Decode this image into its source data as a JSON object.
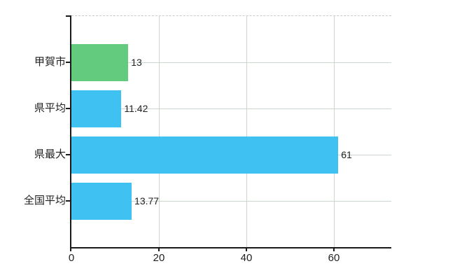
{
  "chart_data": {
    "type": "bar",
    "orientation": "horizontal",
    "title": "",
    "xlabel": "",
    "ylabel": "",
    "categories": [
      "甲賀市",
      "県平均",
      "県最大",
      "全国平均"
    ],
    "values": [
      13,
      11.42,
      61,
      13.77
    ],
    "value_labels": [
      "13",
      "11.42",
      "61",
      "13.77"
    ],
    "x_ticks": [
      0,
      20,
      40,
      60
    ],
    "xlim": [
      0,
      73
    ],
    "grid": true,
    "legend": "none",
    "colors": {
      "bar_colors": [
        "#63cb7d",
        "#3fc1f2",
        "#3fc1f2",
        "#3fc1f2"
      ],
      "highlight_bar": "#63cb7d",
      "default_bar": "#3fc1f2",
      "gridline": "#ccd6cc",
      "top_border": "#c9c9c9",
      "axis": "#1a1a1a",
      "label_text": "#222222"
    }
  }
}
